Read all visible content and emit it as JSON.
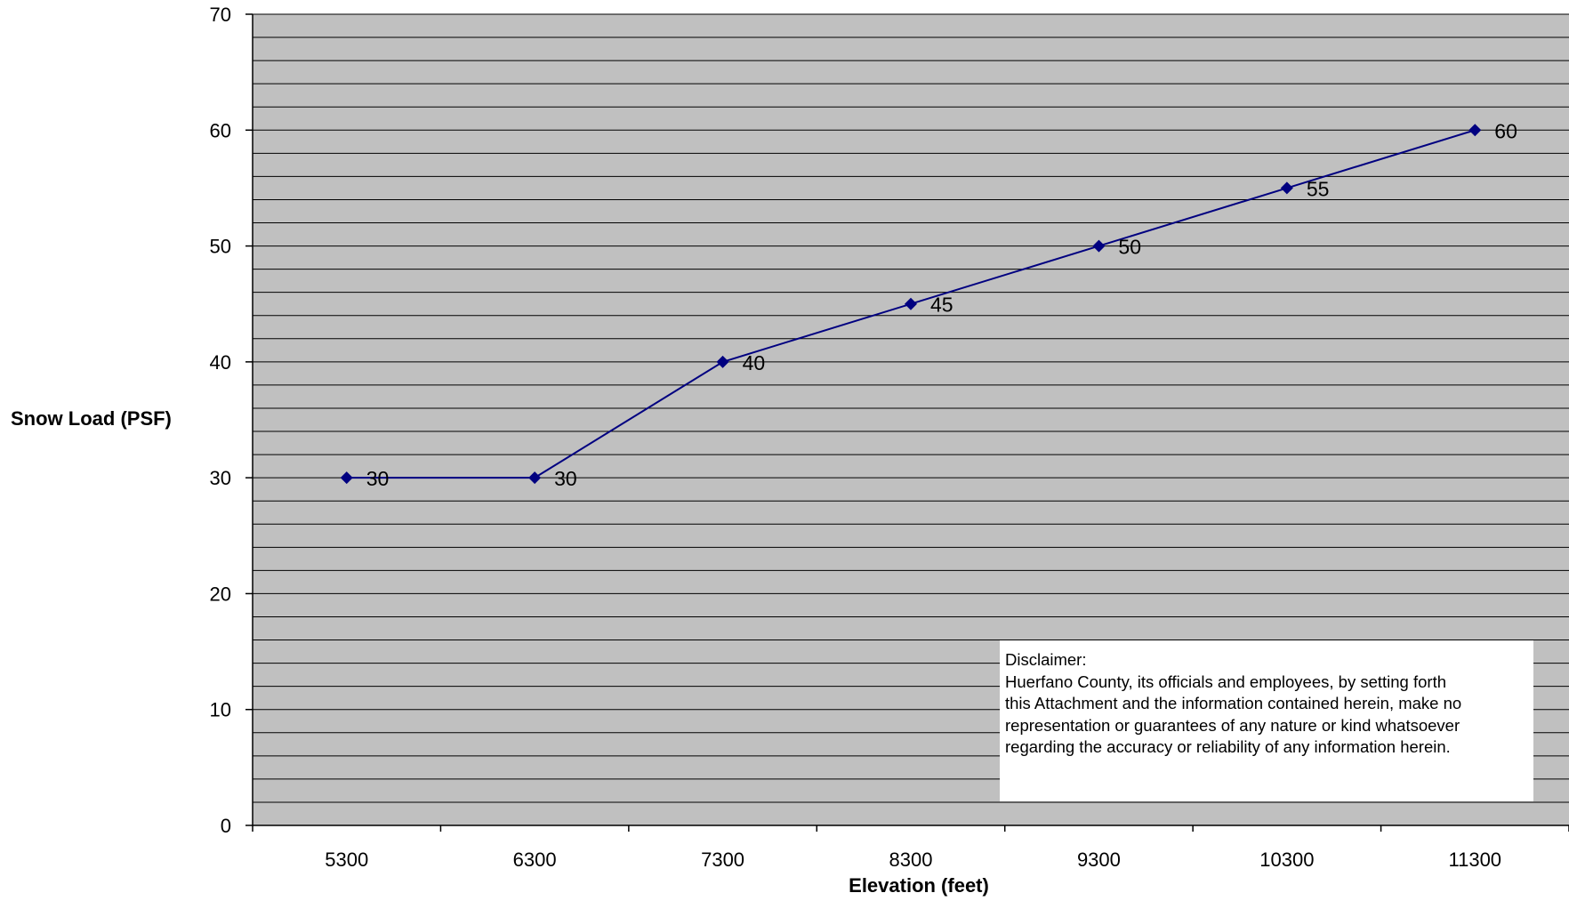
{
  "chart_data": {
    "type": "line",
    "title": "",
    "xlabel": "Elevation (feet)",
    "ylabel": "Snow Load (PSF)",
    "categories": [
      "5300",
      "6300",
      "7300",
      "8300",
      "9300",
      "10300",
      "11300"
    ],
    "series": [
      {
        "values": [
          30,
          30,
          40,
          45,
          50,
          55,
          60
        ],
        "color": "#000080"
      }
    ],
    "ylim": [
      0,
      70
    ],
    "yticks": [
      0,
      10,
      20,
      30,
      40,
      50,
      60,
      70
    ],
    "minor_gridline_step": 2,
    "grid": true,
    "plot_background": "#C0C0C0",
    "gridline_color": "#000000",
    "marker": "diamond",
    "data_labels": true
  },
  "disclaimer": {
    "heading": "Disclaimer:",
    "lines": [
      "Huerfano County, its officials and employees, by setting forth",
      "this Attachment and the information contained herein, make no",
      "representation or guarantees of any nature or kind whatsoever",
      "regarding the accuracy or reliability of any information herein."
    ]
  }
}
